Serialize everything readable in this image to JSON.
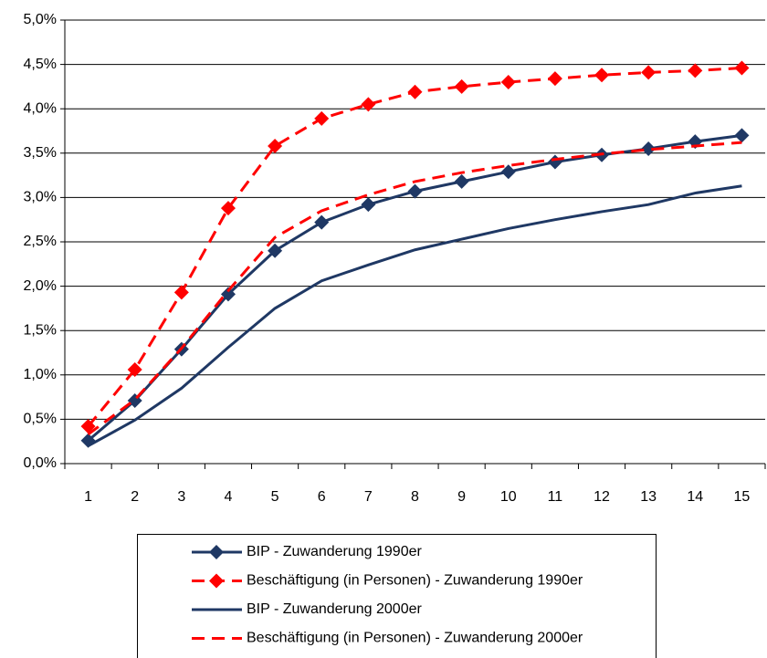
{
  "chart_data": {
    "type": "line",
    "categories": [
      "1",
      "2",
      "3",
      "4",
      "5",
      "6",
      "7",
      "8",
      "9",
      "10",
      "11",
      "12",
      "13",
      "14",
      "15"
    ],
    "series": [
      {
        "name": "BIP - Zuwanderung 1990er",
        "color": "#1f3864",
        "dashed": false,
        "marker": "diamond",
        "values": [
          0.26,
          0.71,
          1.29,
          1.91,
          2.4,
          2.72,
          2.92,
          3.07,
          3.18,
          3.29,
          3.4,
          3.48,
          3.55,
          3.63,
          3.7
        ]
      },
      {
        "name": "Beschäftigung (in Personen) - Zuwanderung 1990er",
        "color": "#ff0000",
        "dashed": true,
        "marker": "diamond",
        "values": [
          0.42,
          1.06,
          1.93,
          2.88,
          3.58,
          3.89,
          4.05,
          4.19,
          4.25,
          4.3,
          4.34,
          4.38,
          4.41,
          4.43,
          4.46
        ]
      },
      {
        "name": "BIP - Zuwanderung 2000er",
        "color": "#1f3864",
        "dashed": false,
        "marker": "none",
        "values": [
          0.2,
          0.49,
          0.85,
          1.31,
          1.75,
          2.06,
          2.24,
          2.41,
          2.53,
          2.65,
          2.75,
          2.84,
          2.92,
          3.05,
          3.13
        ]
      },
      {
        "name": "Beschäftigung (in Personen) - Zuwanderung 2000er",
        "color": "#ff0000",
        "dashed": true,
        "marker": "none",
        "values": [
          0.33,
          0.72,
          1.3,
          1.95,
          2.55,
          2.85,
          3.03,
          3.18,
          3.28,
          3.36,
          3.43,
          3.49,
          3.54,
          3.58,
          3.62
        ]
      }
    ],
    "ylim": [
      0,
      5
    ],
    "yticks": [
      {
        "value": 0,
        "label": "0,0%"
      },
      {
        "value": 0.5,
        "label": "0,5%"
      },
      {
        "value": 1,
        "label": "1,0%"
      },
      {
        "value": 1.5,
        "label": "1,5%"
      },
      {
        "value": 2,
        "label": "2,0%"
      },
      {
        "value": 2.5,
        "label": "2,5%"
      },
      {
        "value": 3,
        "label": "3,0%"
      },
      {
        "value": 3.5,
        "label": "3,5%"
      },
      {
        "value": 4,
        "label": "4,0%"
      },
      {
        "value": 4.5,
        "label": "4,5%"
      },
      {
        "value": 5,
        "label": "5,0%"
      }
    ],
    "grid": true,
    "legend": "bottom"
  }
}
